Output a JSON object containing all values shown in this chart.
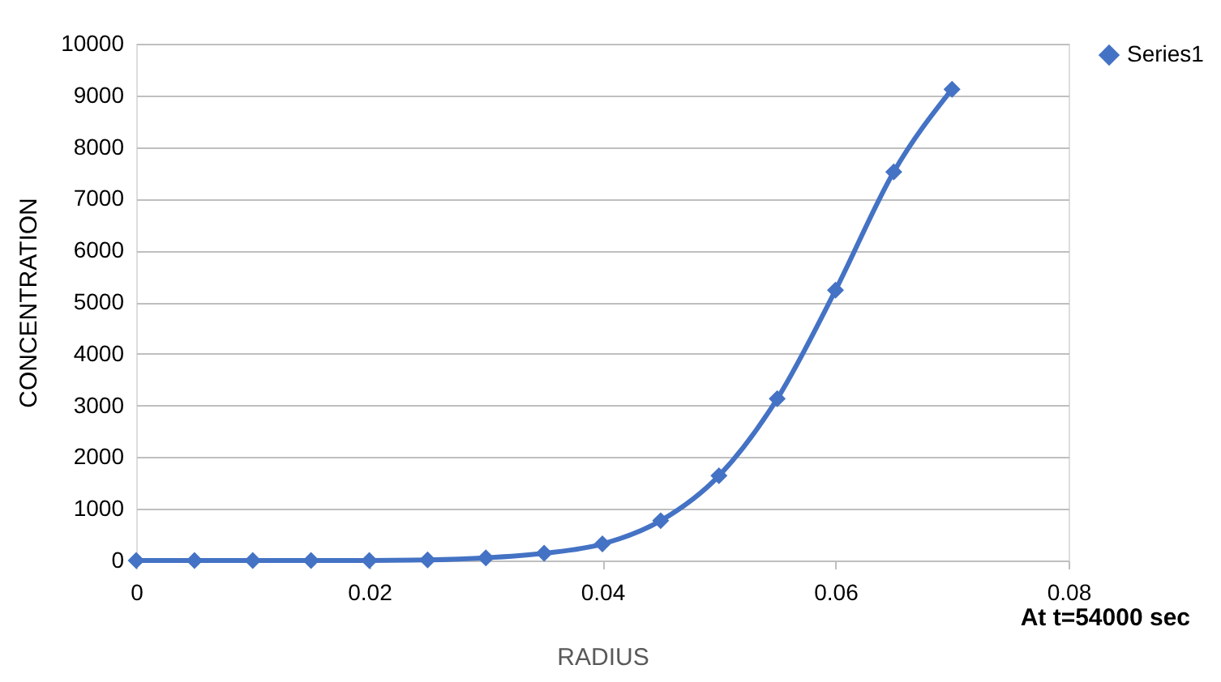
{
  "chart_data": {
    "type": "line",
    "xlabel": "RADIUS",
    "ylabel": "CONCENTRATION",
    "x": [
      0,
      0.005,
      0.01,
      0.015,
      0.02,
      0.025,
      0.03,
      0.035,
      0.04,
      0.045,
      0.05,
      0.055,
      0.06,
      0.065,
      0.07
    ],
    "series": [
      {
        "name": "Series1",
        "color": "#4472c4",
        "values": [
          0,
          0,
          0,
          0,
          0,
          10,
          50,
          140,
          320,
          770,
          1640,
          3130,
          5230,
          7520,
          9120
        ]
      }
    ],
    "xlim": [
      0,
      0.08
    ],
    "xticks": [
      0,
      0.02,
      0.04,
      0.06,
      0.08
    ],
    "ylim": [
      0,
      10000
    ],
    "yticks": [
      0,
      1000,
      2000,
      3000,
      4000,
      5000,
      6000,
      7000,
      8000,
      9000,
      10000
    ],
    "grid": "y",
    "legend": "right",
    "marker": "diamond",
    "line_style": "solid",
    "annotations": [
      "At t=54000 sec"
    ]
  }
}
